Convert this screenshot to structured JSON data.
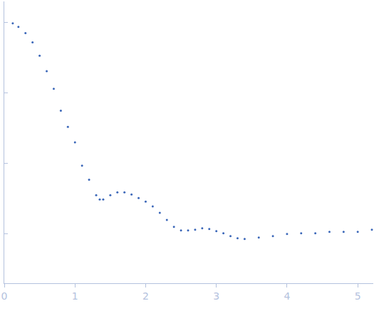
{
  "chart_data": {
    "type": "scatter",
    "x": [
      0.12,
      0.2,
      0.3,
      0.4,
      0.5,
      0.6,
      0.7,
      0.8,
      0.9,
      1.0,
      1.1,
      1.2,
      1.3,
      1.35,
      1.4,
      1.5,
      1.6,
      1.7,
      1.8,
      1.9,
      2.0,
      2.1,
      2.2,
      2.3,
      2.4,
      2.5,
      2.6,
      2.7,
      2.8,
      2.9,
      3.0,
      3.1,
      3.2,
      3.3,
      3.4,
      3.6,
      3.8,
      4.0,
      4.2,
      4.4,
      4.6,
      4.8,
      5.0,
      5.2
    ],
    "values": [
      -0.01,
      -0.06,
      -0.15,
      -0.28,
      -0.47,
      -0.69,
      -0.94,
      -1.25,
      -1.48,
      -1.7,
      -2.03,
      -2.23,
      -2.45,
      -2.51,
      -2.51,
      -2.45,
      -2.41,
      -2.41,
      -2.44,
      -2.49,
      -2.54,
      -2.61,
      -2.7,
      -2.8,
      -2.9,
      -2.95,
      -2.95,
      -2.94,
      -2.92,
      -2.93,
      -2.96,
      -2.99,
      -3.03,
      -3.06,
      -3.07,
      -3.05,
      -3.03,
      -3.0,
      -2.99,
      -2.99,
      -2.97,
      -2.97,
      -2.97,
      -2.94
    ],
    "color": "#3a66b8",
    "marker": "circle",
    "xlim": [
      0,
      5.22
    ],
    "xticks": [
      0,
      1,
      2,
      3,
      4,
      5
    ],
    "ylim": [
      -3.7,
      0.3
    ],
    "yticks": [
      -3,
      -2,
      -1,
      0
    ],
    "tick_labels": "x",
    "grid": false
  }
}
